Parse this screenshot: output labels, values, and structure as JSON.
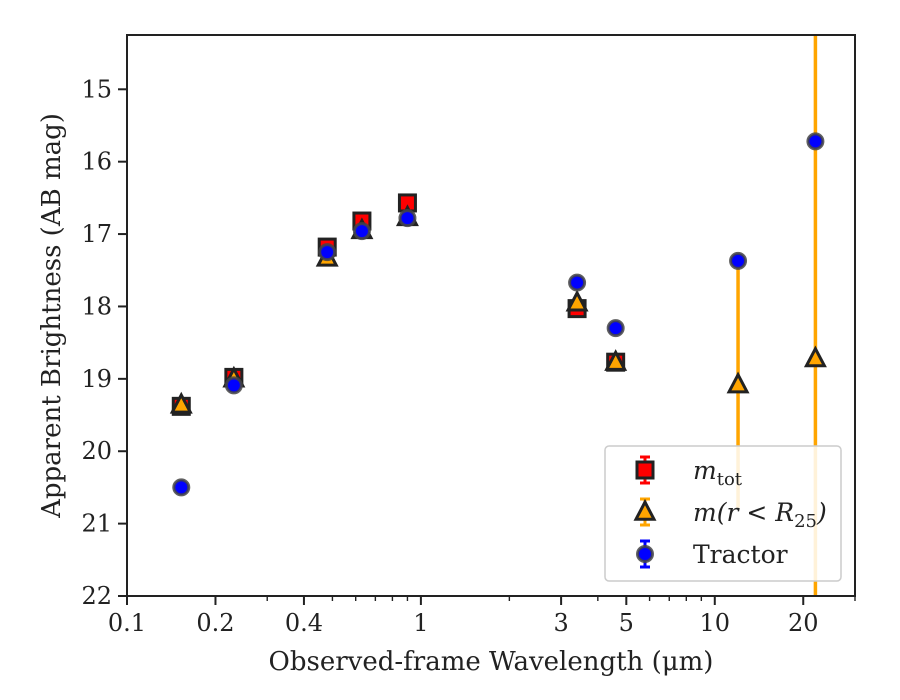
{
  "chart_data": {
    "type": "scatter",
    "xlabel": "Observed-frame Wavelength (μm)",
    "ylabel": "Apparent Brightness (AB mag)",
    "xscale": "log",
    "xlim": [
      0.1,
      30
    ],
    "ylim": [
      22,
      14.25
    ],
    "y_inverted": true,
    "x_ticks": [
      {
        "value": 0.1,
        "label": "0.1"
      },
      {
        "value": 0.2,
        "label": "0.2"
      },
      {
        "value": 0.4,
        "label": "0.4"
      },
      {
        "value": 1,
        "label": "1"
      },
      {
        "value": 3,
        "label": "3"
      },
      {
        "value": 5,
        "label": "5"
      },
      {
        "value": 10,
        "label": "10"
      },
      {
        "value": 20,
        "label": "20"
      }
    ],
    "y_ticks": [
      {
        "value": 15,
        "label": "15"
      },
      {
        "value": 16,
        "label": "16"
      },
      {
        "value": 17,
        "label": "17"
      },
      {
        "value": 18,
        "label": "18"
      },
      {
        "value": 19,
        "label": "19"
      },
      {
        "value": 20,
        "label": "20"
      },
      {
        "value": 21,
        "label": "21"
      },
      {
        "value": 22,
        "label": "22"
      }
    ],
    "grid": false,
    "legend_position": "lower-right",
    "series": [
      {
        "name": "m_tot",
        "marker": "square",
        "color": "#ff0000",
        "edge_color": "#222222",
        "x": [
          0.153,
          0.231,
          0.48,
          0.63,
          0.9,
          3.4,
          4.6
        ],
        "y": [
          19.38,
          18.98,
          17.18,
          16.82,
          16.57,
          18.03,
          18.77
        ],
        "yerr": [
          0.05,
          0.05,
          0.03,
          0.03,
          0.03,
          0.05,
          0.05
        ]
      },
      {
        "name": "m(r<R25)",
        "marker": "triangle",
        "color": "#ffa500",
        "edge_color": "#222222",
        "x": [
          0.153,
          0.231,
          0.48,
          0.63,
          0.9,
          3.4,
          4.6,
          12.0,
          22.0
        ],
        "y": [
          19.36,
          19.0,
          17.33,
          16.95,
          16.77,
          17.95,
          18.77,
          19.08,
          18.72
        ],
        "yerr": [
          0.05,
          0.05,
          0.03,
          0.03,
          0.03,
          0.05,
          0.05,
          1.7,
          6.0
        ]
      },
      {
        "name": "Tractor",
        "marker": "circle",
        "color": "#0000ff",
        "edge_color": "#444444",
        "x": [
          0.153,
          0.231,
          0.48,
          0.63,
          0.9,
          3.4,
          4.6,
          12.0,
          22.0
        ],
        "y": [
          20.5,
          19.09,
          17.25,
          16.96,
          16.78,
          17.67,
          18.3,
          17.37,
          15.72
        ],
        "yerr": [
          0.08,
          0.06,
          0.03,
          0.03,
          0.03,
          0.04,
          0.05,
          0.06,
          0.08
        ]
      }
    ],
    "legend": [
      {
        "series": 0,
        "label_main": "m",
        "label_sub": "tot"
      },
      {
        "series": 1,
        "label_main": "m(r < R",
        "label_sub": "25",
        "label_tail": ")"
      },
      {
        "series": 2,
        "label_main": "Tractor"
      }
    ]
  }
}
